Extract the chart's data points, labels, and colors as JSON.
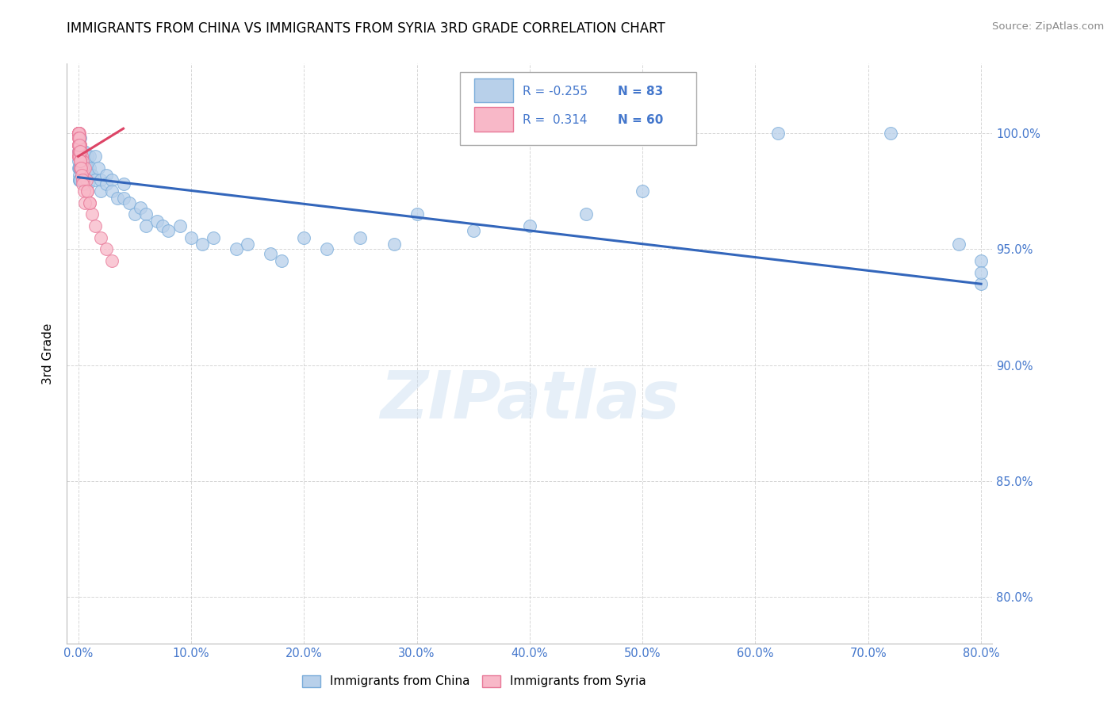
{
  "title": "IMMIGRANTS FROM CHINA VS IMMIGRANTS FROM SYRIA 3RD GRADE CORRELATION CHART",
  "source": "Source: ZipAtlas.com",
  "ylabel": "3rd Grade",
  "x_tick_values": [
    0,
    10,
    20,
    30,
    40,
    50,
    60,
    70,
    80
  ],
  "y_tick_values": [
    80,
    85,
    90,
    95,
    100
  ],
  "xlim": [
    -1,
    81
  ],
  "ylim": [
    78,
    103
  ],
  "legend_china_label": "Immigrants from China",
  "legend_syria_label": "Immigrants from Syria",
  "china_R": "-0.255",
  "china_N": "83",
  "syria_R": "0.314",
  "syria_N": "60",
  "china_color": "#b8d0ea",
  "china_edge": "#7aacda",
  "syria_color": "#f8b8c8",
  "syria_edge": "#e87898",
  "china_line_color": "#3366bb",
  "syria_line_color": "#dd4466",
  "watermark": "ZIPatlas",
  "background_color": "#ffffff",
  "grid_color": "#cccccc",
  "title_fontsize": 12,
  "right_axis_color": "#4477cc",
  "china_scatter_x": [
    0.05,
    0.05,
    0.05,
    0.05,
    0.08,
    0.08,
    0.08,
    0.1,
    0.1,
    0.1,
    0.12,
    0.12,
    0.15,
    0.15,
    0.15,
    0.15,
    0.18,
    0.2,
    0.2,
    0.2,
    0.25,
    0.25,
    0.3,
    0.3,
    0.35,
    0.4,
    0.4,
    0.45,
    0.5,
    0.5,
    0.6,
    0.6,
    0.7,
    0.7,
    0.8,
    0.8,
    0.9,
    1.0,
    1.0,
    1.2,
    1.5,
    1.5,
    1.8,
    2.0,
    2.0,
    2.5,
    2.5,
    3.0,
    3.0,
    3.5,
    4.0,
    4.0,
    4.5,
    5.0,
    5.5,
    6.0,
    6.0,
    7.0,
    7.5,
    8.0,
    9.0,
    10.0,
    11.0,
    12.0,
    14.0,
    15.0,
    17.0,
    18.0,
    20.0,
    22.0,
    25.0,
    28.0,
    30.0,
    35.0,
    40.0,
    45.0,
    50.0,
    62.0,
    72.0,
    78.0,
    80.0,
    80.0,
    80.0
  ],
  "china_scatter_y": [
    99.5,
    99.2,
    98.8,
    98.5,
    99.0,
    98.5,
    98.2,
    99.0,
    98.5,
    98.0,
    99.5,
    98.0,
    99.8,
    99.0,
    98.5,
    98.0,
    99.2,
    99.5,
    99.0,
    98.5,
    99.2,
    98.8,
    99.0,
    98.5,
    98.0,
    99.2,
    98.5,
    98.8,
    99.2,
    98.5,
    99.0,
    98.5,
    98.8,
    98.2,
    99.0,
    98.5,
    97.8,
    99.0,
    98.5,
    98.2,
    99.0,
    98.0,
    98.5,
    98.0,
    97.5,
    98.2,
    97.8,
    98.0,
    97.5,
    97.2,
    97.8,
    97.2,
    97.0,
    96.5,
    96.8,
    96.5,
    96.0,
    96.2,
    96.0,
    95.8,
    96.0,
    95.5,
    95.2,
    95.5,
    95.0,
    95.2,
    94.8,
    94.5,
    95.5,
    95.0,
    95.5,
    95.2,
    96.5,
    95.8,
    96.0,
    96.5,
    97.5,
    100.0,
    100.0,
    95.2,
    94.5,
    93.5,
    94.0
  ],
  "syria_scatter_x": [
    0.02,
    0.02,
    0.02,
    0.02,
    0.02,
    0.02,
    0.02,
    0.02,
    0.02,
    0.02,
    0.05,
    0.05,
    0.05,
    0.08,
    0.08,
    0.1,
    0.1,
    0.12,
    0.12,
    0.15,
    0.15,
    0.18,
    0.2,
    0.2,
    0.25,
    0.3,
    0.35,
    0.4,
    0.45,
    0.5,
    0.6,
    0.7,
    0.8,
    1.0,
    1.2,
    1.5,
    2.0,
    2.5,
    3.0,
    0.02,
    0.02,
    0.02,
    0.05,
    0.05,
    0.08,
    0.08,
    0.1,
    0.12,
    0.15,
    0.15,
    0.18,
    0.2,
    0.25,
    0.3,
    0.35,
    0.4,
    0.5,
    0.6,
    0.8,
    1.0
  ],
  "syria_scatter_y": [
    100.0,
    100.0,
    100.0,
    100.0,
    100.0,
    100.0,
    99.8,
    99.5,
    99.2,
    99.0,
    100.0,
    99.5,
    99.0,
    99.8,
    99.2,
    100.0,
    99.5,
    99.2,
    99.0,
    99.5,
    99.0,
    99.2,
    99.5,
    99.0,
    99.2,
    99.0,
    98.8,
    98.5,
    98.2,
    98.0,
    98.5,
    98.0,
    97.5,
    97.0,
    96.5,
    96.0,
    95.5,
    95.0,
    94.5,
    100.0,
    99.8,
    99.5,
    99.5,
    99.0,
    99.8,
    99.0,
    99.2,
    99.5,
    99.2,
    98.8,
    98.5,
    98.8,
    98.5,
    98.2,
    98.0,
    97.8,
    97.5,
    97.0,
    97.5,
    97.0
  ],
  "china_line_x": [
    0,
    80
  ],
  "china_line_y": [
    98.1,
    93.5
  ],
  "syria_line_x": [
    0,
    4.0
  ],
  "syria_line_y": [
    99.0,
    100.2
  ]
}
